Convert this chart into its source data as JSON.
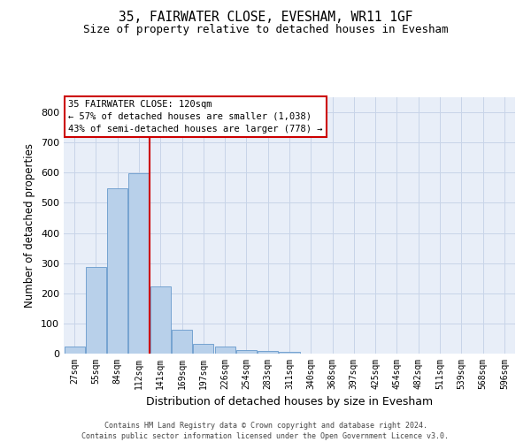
{
  "title1": "35, FAIRWATER CLOSE, EVESHAM, WR11 1GF",
  "title2": "Size of property relative to detached houses in Evesham",
  "xlabel": "Distribution of detached houses by size in Evesham",
  "ylabel": "Number of detached properties",
  "footnote": "Contains HM Land Registry data © Crown copyright and database right 2024.\nContains public sector information licensed under the Open Government Licence v3.0.",
  "bin_labels": [
    "27sqm",
    "55sqm",
    "84sqm",
    "112sqm",
    "141sqm",
    "169sqm",
    "197sqm",
    "226sqm",
    "254sqm",
    "283sqm",
    "311sqm",
    "340sqm",
    "368sqm",
    "397sqm",
    "425sqm",
    "454sqm",
    "482sqm",
    "511sqm",
    "539sqm",
    "568sqm",
    "596sqm"
  ],
  "bar_values": [
    22,
    288,
    547,
    599,
    222,
    80,
    32,
    22,
    12,
    10,
    7,
    0,
    0,
    0,
    0,
    0,
    0,
    0,
    0,
    0,
    0
  ],
  "bar_color": "#b8d0ea",
  "bar_edge_color": "#6699cc",
  "grid_color": "#c8d4e8",
  "vline_x": 3.5,
  "vline_color": "#cc0000",
  "annotation_line1": "35 FAIRWATER CLOSE: 120sqm",
  "annotation_line2": "← 57% of detached houses are smaller (1,038)",
  "annotation_line3": "43% of semi-detached houses are larger (778) →",
  "annotation_box_color": "#ffffff",
  "annotation_box_edge": "#cc0000",
  "ylim": [
    0,
    850
  ],
  "yticks": [
    0,
    100,
    200,
    300,
    400,
    500,
    600,
    700,
    800
  ],
  "bg_color": "#e8eef8",
  "fig_bg": "#ffffff",
  "title1_fontsize": 10.5,
  "title2_fontsize": 9,
  "ylabel_fontsize": 8.5,
  "xlabel_fontsize": 9,
  "tick_fontsize": 7,
  "annot_fontsize": 7.5,
  "footnote_fontsize": 6
}
